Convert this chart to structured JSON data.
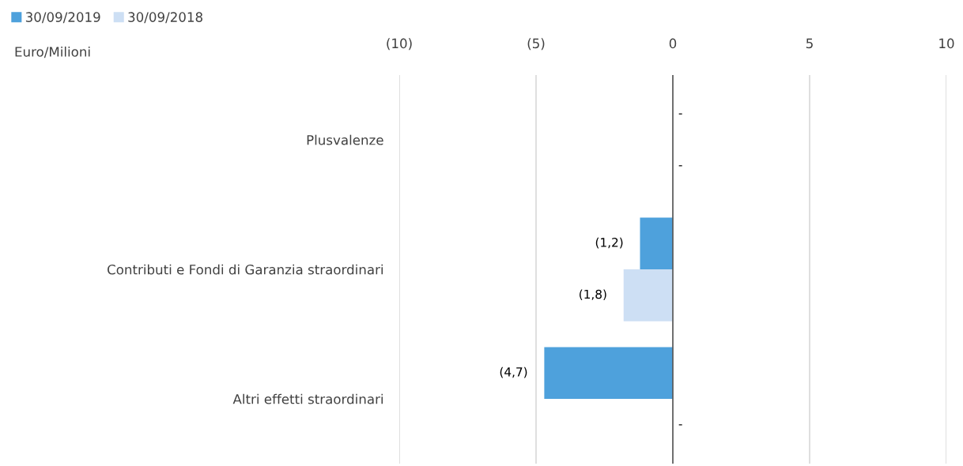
{
  "chart_data": {
    "type": "bar",
    "orientation": "horizontal",
    "annotations": [
      "Euro/Milioni"
    ],
    "ref_lines": [
      {
        "axis": "x",
        "value": 0,
        "color": "#595959"
      }
    ],
    "categories": [
      "Plusvalenze",
      "Contributi e Fondi di Garanzia straordinari",
      "Altri effetti straordinari"
    ],
    "series": [
      {
        "name": "30/09/2019",
        "color": "#4ea1dc",
        "values": [
          null,
          -1.2,
          -4.7
        ],
        "value_labels": [
          "-",
          "(1,2)",
          "(4,7)"
        ]
      },
      {
        "name": "30/09/2018",
        "color": "#cddff4",
        "values": [
          null,
          -1.8,
          null
        ],
        "value_labels": [
          "-",
          "(1,8)",
          "-"
        ]
      }
    ],
    "xlim": [
      -10,
      10
    ],
    "xticks": [
      {
        "value": -10,
        "label": "(10)"
      },
      {
        "value": -5,
        "label": "(5)"
      },
      {
        "value": 0,
        "label": "0"
      },
      {
        "value": 5,
        "label": "5"
      },
      {
        "value": 10,
        "label": "10"
      }
    ],
    "grid": "x",
    "legend": "top left"
  }
}
